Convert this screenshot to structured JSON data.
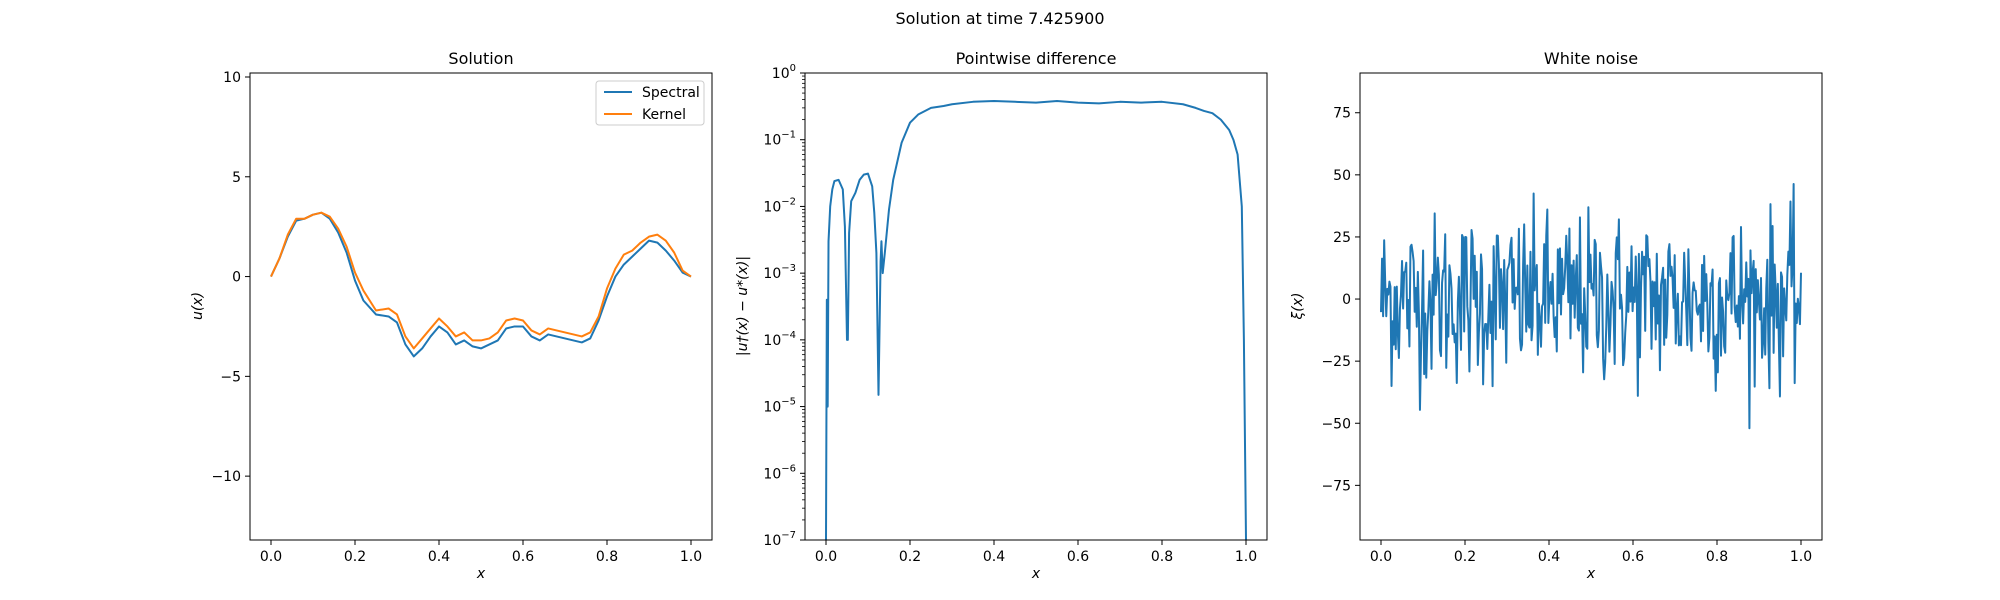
{
  "figure": {
    "suptitle": "Solution at time 7.425900"
  },
  "colors": {
    "spectral": "#1f77b4",
    "kernel": "#ff7f0e",
    "noise": "#1f77b4",
    "diff": "#1f77b4"
  },
  "chart_data": [
    {
      "type": "line",
      "title": "Solution",
      "xlabel": "x",
      "ylabel": "u(x)",
      "xlim": [
        -0.05,
        1.05
      ],
      "ylim": [
        -13.2,
        10.2
      ],
      "xticks": [
        "0.0",
        "0.2",
        "0.4",
        "0.6",
        "0.8",
        "1.0"
      ],
      "yticks": [
        "10",
        "5",
        "0",
        "−5",
        "−10"
      ],
      "legend": {
        "placement": "top-right",
        "entries": [
          "Spectral",
          "Kernel"
        ]
      },
      "series": [
        {
          "name": "Spectral",
          "x": [
            0.0,
            0.02,
            0.04,
            0.06,
            0.08,
            0.1,
            0.12,
            0.14,
            0.16,
            0.18,
            0.2,
            0.22,
            0.25,
            0.28,
            0.3,
            0.32,
            0.34,
            0.36,
            0.38,
            0.4,
            0.42,
            0.44,
            0.46,
            0.48,
            0.5,
            0.52,
            0.54,
            0.56,
            0.58,
            0.6,
            0.62,
            0.64,
            0.66,
            0.68,
            0.7,
            0.72,
            0.74,
            0.76,
            0.78,
            0.8,
            0.82,
            0.84,
            0.86,
            0.88,
            0.9,
            0.92,
            0.94,
            0.96,
            0.98,
            1.0
          ],
          "y": [
            0.0,
            0.9,
            2.0,
            2.8,
            2.9,
            3.1,
            3.2,
            2.9,
            2.2,
            1.2,
            -0.2,
            -1.2,
            -1.9,
            -2.0,
            -2.3,
            -3.4,
            -4.0,
            -3.6,
            -3.0,
            -2.5,
            -2.8,
            -3.4,
            -3.2,
            -3.5,
            -3.6,
            -3.4,
            -3.2,
            -2.6,
            -2.5,
            -2.5,
            -3.0,
            -3.2,
            -2.9,
            -3.0,
            -3.1,
            -3.2,
            -3.3,
            -3.1,
            -2.2,
            -1.0,
            0.0,
            0.6,
            1.0,
            1.4,
            1.8,
            1.7,
            1.3,
            0.8,
            0.2,
            0.0
          ]
        },
        {
          "name": "Kernel",
          "x": [
            0.0,
            0.02,
            0.04,
            0.06,
            0.08,
            0.1,
            0.12,
            0.14,
            0.16,
            0.18,
            0.2,
            0.22,
            0.25,
            0.28,
            0.3,
            0.32,
            0.34,
            0.36,
            0.38,
            0.4,
            0.42,
            0.44,
            0.46,
            0.48,
            0.5,
            0.52,
            0.54,
            0.56,
            0.58,
            0.6,
            0.62,
            0.64,
            0.66,
            0.68,
            0.7,
            0.72,
            0.74,
            0.76,
            0.78,
            0.8,
            0.82,
            0.84,
            0.86,
            0.88,
            0.9,
            0.92,
            0.94,
            0.96,
            0.98,
            1.0
          ],
          "y": [
            0.0,
            0.9,
            2.1,
            2.9,
            2.9,
            3.1,
            3.2,
            3.0,
            2.4,
            1.5,
            0.2,
            -0.7,
            -1.7,
            -1.6,
            -1.9,
            -3.0,
            -3.6,
            -3.1,
            -2.6,
            -2.1,
            -2.5,
            -3.0,
            -2.8,
            -3.2,
            -3.2,
            -3.1,
            -2.8,
            -2.2,
            -2.1,
            -2.2,
            -2.7,
            -2.9,
            -2.6,
            -2.7,
            -2.8,
            -2.9,
            -3.0,
            -2.8,
            -2.0,
            -0.6,
            0.4,
            1.1,
            1.3,
            1.7,
            2.0,
            2.1,
            1.8,
            1.2,
            0.3,
            0.0
          ]
        }
      ]
    },
    {
      "type": "line",
      "title": "Pointwise difference",
      "xlabel": "x",
      "ylabel": "|u†(x) − u*(x)|",
      "yscale": "log",
      "xlim": [
        -0.05,
        1.05
      ],
      "ylim": [
        1e-07,
        1
      ],
      "xticks": [
        "0.0",
        "0.2",
        "0.4",
        "0.6",
        "0.8",
        "1.0"
      ],
      "yticks": [
        {
          "value": 1,
          "base": "10",
          "exp": "0"
        },
        {
          "value": 0.1,
          "base": "10",
          "exp": "−1"
        },
        {
          "value": 0.01,
          "base": "10",
          "exp": "−2"
        },
        {
          "value": 0.001,
          "base": "10",
          "exp": "−3"
        },
        {
          "value": 0.0001,
          "base": "10",
          "exp": "−4"
        },
        {
          "value": 1e-05,
          "base": "10",
          "exp": "−5"
        },
        {
          "value": 1e-06,
          "base": "10",
          "exp": "−6"
        },
        {
          "value": 1e-07,
          "base": "10",
          "exp": "−7"
        }
      ],
      "series": [
        {
          "x": [
            0.0,
            0.002,
            0.004,
            0.006,
            0.01,
            0.015,
            0.02,
            0.03,
            0.04,
            0.045,
            0.05,
            0.052,
            0.055,
            0.06,
            0.07,
            0.08,
            0.09,
            0.1,
            0.11,
            0.115,
            0.12,
            0.125,
            0.13,
            0.132,
            0.135,
            0.14,
            0.15,
            0.16,
            0.18,
            0.2,
            0.22,
            0.25,
            0.28,
            0.3,
            0.35,
            0.4,
            0.45,
            0.5,
            0.55,
            0.6,
            0.65,
            0.7,
            0.75,
            0.8,
            0.85,
            0.88,
            0.9,
            0.92,
            0.94,
            0.96,
            0.97,
            0.98,
            0.99,
            0.995,
            1.0
          ],
          "y": [
            1e-07,
            0.0004,
            1e-05,
            0.003,
            0.01,
            0.018,
            0.024,
            0.025,
            0.018,
            0.005,
            0.0001,
            0.0001,
            0.004,
            0.012,
            0.016,
            0.025,
            0.03,
            0.031,
            0.02,
            0.008,
            0.002,
            1.5e-05,
            0.0015,
            0.003,
            0.001,
            0.002,
            0.009,
            0.025,
            0.09,
            0.18,
            0.24,
            0.3,
            0.32,
            0.34,
            0.37,
            0.38,
            0.37,
            0.36,
            0.38,
            0.36,
            0.35,
            0.37,
            0.36,
            0.37,
            0.34,
            0.3,
            0.27,
            0.25,
            0.2,
            0.14,
            0.1,
            0.06,
            0.01,
            0.0001,
            1e-07
          ]
        }
      ]
    },
    {
      "type": "line",
      "title": "White noise",
      "xlabel": "x",
      "ylabel": "ξ(x)",
      "xlim": [
        -0.05,
        1.05
      ],
      "ylim": [
        -97,
        91
      ],
      "xticks": [
        "0.0",
        "0.2",
        "0.4",
        "0.6",
        "0.8",
        "1.0"
      ],
      "yticks": [
        "75",
        "50",
        "25",
        "0",
        "−25",
        "−50",
        "−75"
      ],
      "series": [
        {
          "n_points": 400,
          "x_range": [
            0.0,
            1.0
          ],
          "approx_std": 17,
          "approx_range": [
            -52,
            51
          ]
        }
      ]
    }
  ]
}
